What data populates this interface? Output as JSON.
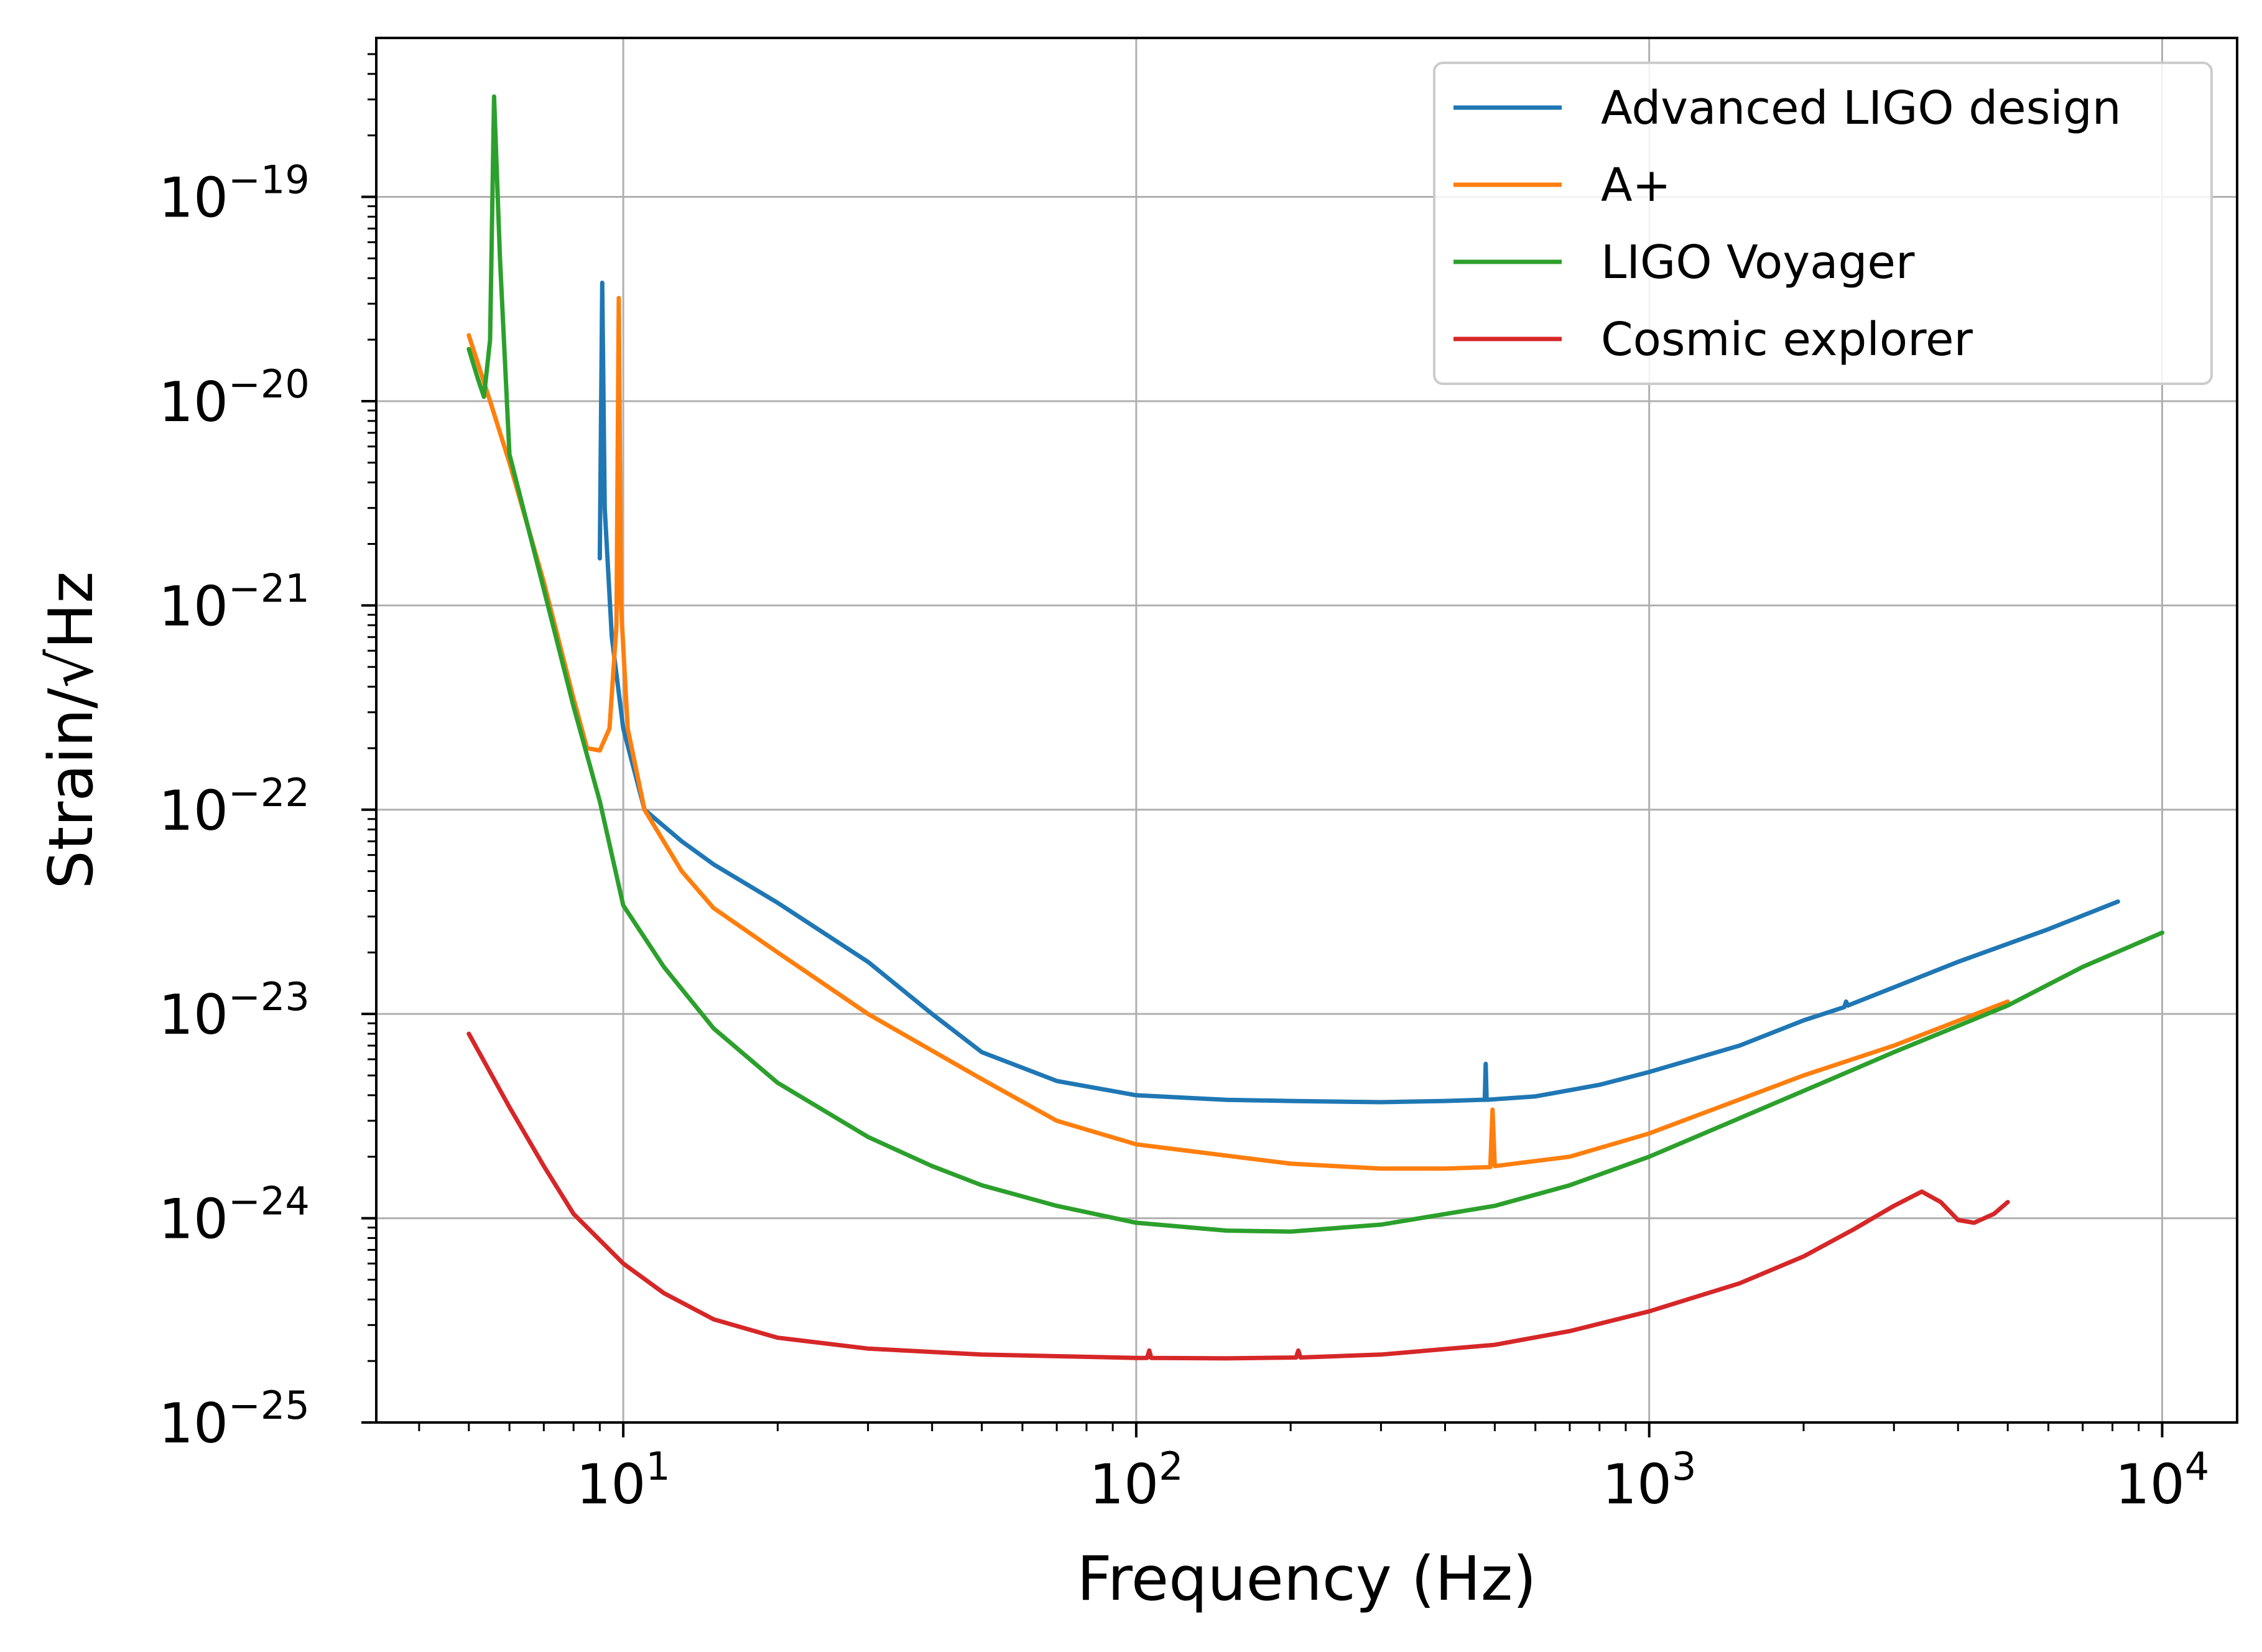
{
  "chart_data": {
    "type": "line",
    "xlabel": "Frequency (Hz)",
    "ylabel": "Strain/√Hz",
    "xscale": "log",
    "yscale": "log",
    "xlim": [
      3.3,
      14000
    ],
    "ylim": [
      1e-25,
      6e-19
    ],
    "grid": true,
    "legend_position": "top-right",
    "x_ticks": [
      {
        "value": 10,
        "base": "10",
        "exp": "1"
      },
      {
        "value": 100,
        "base": "10",
        "exp": "2"
      },
      {
        "value": 1000,
        "base": "10",
        "exp": "3"
      },
      {
        "value": 10000,
        "base": "10",
        "exp": "4"
      }
    ],
    "y_ticks": [
      {
        "value": 1e-19,
        "base": "10",
        "exp": "−19"
      },
      {
        "value": 1e-20,
        "base": "10",
        "exp": "−20"
      },
      {
        "value": 1e-21,
        "base": "10",
        "exp": "−21"
      },
      {
        "value": 1e-22,
        "base": "10",
        "exp": "−22"
      },
      {
        "value": 1e-23,
        "base": "10",
        "exp": "−23"
      },
      {
        "value": 1e-24,
        "base": "10",
        "exp": "−24"
      },
      {
        "value": 1e-25,
        "base": "10",
        "exp": "−25"
      }
    ],
    "series": [
      {
        "name": "Advanced LIGO design",
        "color": "#1f77b4",
        "points": [
          [
            9.0,
            1.7e-21
          ],
          [
            9.1,
            3.8e-20
          ],
          [
            9.2,
            3e-21
          ],
          [
            9.5,
            7e-22
          ],
          [
            10,
            2.5e-22
          ],
          [
            11,
            1e-22
          ],
          [
            13,
            7e-23
          ],
          [
            15,
            5.4e-23
          ],
          [
            20,
            3.5e-23
          ],
          [
            30,
            1.8e-23
          ],
          [
            40,
            1e-23
          ],
          [
            50,
            6.5e-24
          ],
          [
            70,
            4.7e-24
          ],
          [
            100,
            4e-24
          ],
          [
            150,
            3.8e-24
          ],
          [
            200,
            3.75e-24
          ],
          [
            300,
            3.7e-24
          ],
          [
            400,
            3.75e-24
          ],
          [
            470,
            3.8e-24
          ],
          [
            478,
            3.8e-24
          ],
          [
            480,
            5.7e-24
          ],
          [
            482,
            3.8e-24
          ],
          [
            600,
            3.95e-24
          ],
          [
            800,
            4.5e-24
          ],
          [
            1000,
            5.2e-24
          ],
          [
            1500,
            7e-24
          ],
          [
            2000,
            9.3e-24
          ],
          [
            2400,
            1.08e-23
          ],
          [
            2420,
            1.15e-23
          ],
          [
            2440,
            1.1e-23
          ],
          [
            3000,
            1.35e-23
          ],
          [
            4000,
            1.8e-23
          ],
          [
            6000,
            2.6e-23
          ],
          [
            8200,
            3.55e-23
          ]
        ]
      },
      {
        "name": "A+",
        "color": "#ff7f0e",
        "points": [
          [
            5.0,
            2.1e-20
          ],
          [
            5.5,
            1e-20
          ],
          [
            6,
            5e-21
          ],
          [
            7,
            1.3e-21
          ],
          [
            8,
            3.5e-22
          ],
          [
            8.5,
            2e-22
          ],
          [
            9.0,
            1.95e-22
          ],
          [
            9.4,
            2.5e-22
          ],
          [
            9.7,
            8e-22
          ],
          [
            9.8,
            3.2e-20
          ],
          [
            9.9,
            1e-21
          ],
          [
            10.2,
            2.5e-22
          ],
          [
            11,
            1e-22
          ],
          [
            13,
            5e-23
          ],
          [
            15,
            3.3e-23
          ],
          [
            20,
            2e-23
          ],
          [
            30,
            1e-23
          ],
          [
            50,
            4.8e-24
          ],
          [
            70,
            3e-24
          ],
          [
            100,
            2.3e-24
          ],
          [
            200,
            1.85e-24
          ],
          [
            300,
            1.75e-24
          ],
          [
            400,
            1.75e-24
          ],
          [
            490,
            1.78e-24
          ],
          [
            495,
            3.4e-24
          ],
          [
            500,
            1.8e-24
          ],
          [
            700,
            2e-24
          ],
          [
            1000,
            2.6e-24
          ],
          [
            2000,
            5e-24
          ],
          [
            3000,
            7e-24
          ],
          [
            5000,
            1.15e-23
          ]
        ]
      },
      {
        "name": "LIGO Voyager",
        "color": "#2ca02c",
        "points": [
          [
            5.0,
            1.8e-20
          ],
          [
            5.2,
            1.3e-20
          ],
          [
            5.35,
            1.05e-20
          ],
          [
            5.5,
            2e-20
          ],
          [
            5.6,
            3.1e-19
          ],
          [
            5.75,
            5e-20
          ],
          [
            6,
            5.5e-21
          ],
          [
            7,
            1.2e-21
          ],
          [
            8,
            3.2e-22
          ],
          [
            9,
            1.1e-22
          ],
          [
            10,
            3.4e-23
          ],
          [
            12,
            1.7e-23
          ],
          [
            15,
            8.5e-24
          ],
          [
            20,
            4.6e-24
          ],
          [
            30,
            2.5e-24
          ],
          [
            40,
            1.8e-24
          ],
          [
            50,
            1.45e-24
          ],
          [
            70,
            1.15e-24
          ],
          [
            100,
            9.5e-25
          ],
          [
            150,
            8.7e-25
          ],
          [
            200,
            8.6e-25
          ],
          [
            300,
            9.3e-25
          ],
          [
            500,
            1.15e-24
          ],
          [
            700,
            1.45e-24
          ],
          [
            1000,
            2e-24
          ],
          [
            2000,
            4.2e-24
          ],
          [
            3000,
            6.5e-24
          ],
          [
            5000,
            1.1e-23
          ],
          [
            7000,
            1.7e-23
          ],
          [
            10000,
            2.5e-23
          ]
        ]
      },
      {
        "name": "Cosmic explorer",
        "color": "#d62728",
        "points": [
          [
            5.0,
            8e-24
          ],
          [
            6,
            3.5e-24
          ],
          [
            7,
            1.8e-24
          ],
          [
            8,
            1.05e-24
          ],
          [
            10,
            6e-25
          ],
          [
            12,
            4.3e-25
          ],
          [
            15,
            3.2e-25
          ],
          [
            20,
            2.6e-25
          ],
          [
            30,
            2.3e-25
          ],
          [
            50,
            2.15e-25
          ],
          [
            100,
            2.07e-25
          ],
          [
            105,
            2.07e-25
          ],
          [
            106,
            2.25e-25
          ],
          [
            107,
            2.07e-25
          ],
          [
            150,
            2.06e-25
          ],
          [
            205,
            2.08e-25
          ],
          [
            207,
            2.25e-25
          ],
          [
            209,
            2.08e-25
          ],
          [
            300,
            2.15e-25
          ],
          [
            500,
            2.4e-25
          ],
          [
            700,
            2.8e-25
          ],
          [
            1000,
            3.5e-25
          ],
          [
            1500,
            4.8e-25
          ],
          [
            2000,
            6.5e-25
          ],
          [
            2500,
            8.8e-25
          ],
          [
            3000,
            1.15e-24
          ],
          [
            3400,
            1.35e-24
          ],
          [
            3700,
            1.2e-24
          ],
          [
            4000,
            9.8e-25
          ],
          [
            4300,
            9.5e-25
          ],
          [
            4700,
            1.05e-24
          ],
          [
            5000,
            1.2e-24
          ]
        ]
      }
    ]
  }
}
